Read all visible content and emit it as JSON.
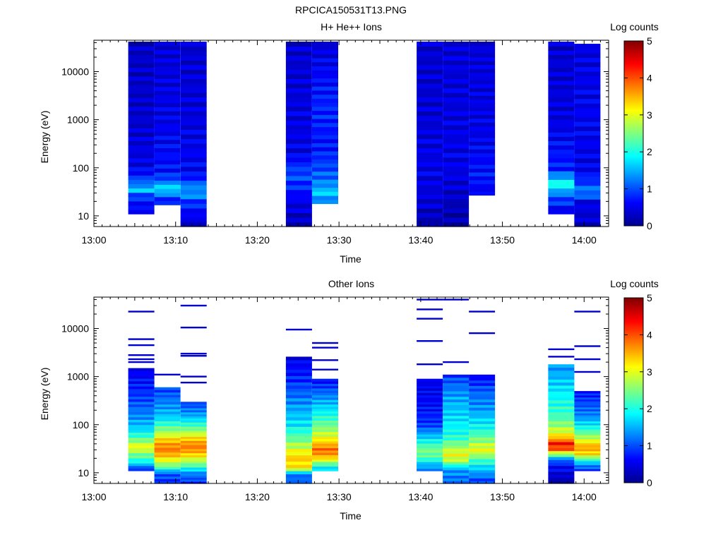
{
  "figure_title": "RPCICA150531T13.PNG",
  "colormap": {
    "stops": [
      "#00008f",
      "#0000ff",
      "#007fff",
      "#00ffff",
      "#7fff7f",
      "#ffff00",
      "#ff7f00",
      "#ff0000",
      "#7f0000"
    ],
    "min": 0,
    "max": 5
  },
  "chart_data": [
    {
      "type": "heatmap",
      "title": "H+ He++ Ions",
      "xlabel": "Time",
      "ylabel": "Energy (eV)",
      "yscale": "log",
      "ylim": [
        6,
        45000
      ],
      "xlim": [
        "13:00",
        "14:03"
      ],
      "x_ticks": [
        "13:00",
        "13:10",
        "13:20",
        "13:30",
        "13:40",
        "13:50",
        "14:00"
      ],
      "y_ticks": [
        "10",
        "100",
        "1000",
        "10000"
      ],
      "colorbar_label": "Log counts",
      "colorbar_ticks": [
        "0",
        "1",
        "2",
        "3",
        "4",
        "5"
      ],
      "columns": [
        {
          "start": "13:04.2",
          "end": "13:07.4",
          "e_min": 11,
          "e_max": 42000,
          "profile": [
            [
              11,
              0.5
            ],
            [
              25,
              0.8
            ],
            [
              35,
              1.6
            ],
            [
              45,
              1.3
            ],
            [
              60,
              0.9
            ],
            [
              100,
              0.5
            ],
            [
              1000,
              0.35
            ],
            [
              42000,
              0.3
            ]
          ]
        },
        {
          "start": "13:07.4",
          "end": "13:10.6",
          "e_min": 17,
          "e_max": 42000,
          "profile": [
            [
              17,
              0.5
            ],
            [
              28,
              1.2
            ],
            [
              38,
              1.9
            ],
            [
              50,
              1.2
            ],
            [
              80,
              0.7
            ],
            [
              1000,
              0.5
            ],
            [
              42000,
              0.4
            ]
          ]
        },
        {
          "start": "13:10.6",
          "end": "13:13.8",
          "e_min": 6,
          "e_max": 42000,
          "profile": [
            [
              6,
              0.3
            ],
            [
              18,
              0.8
            ],
            [
              30,
              1.4
            ],
            [
              45,
              1.2
            ],
            [
              70,
              0.6
            ],
            [
              1000,
              0.45
            ],
            [
              42000,
              0.35
            ]
          ]
        },
        {
          "start": "13:23.5",
          "end": "13:26.7",
          "e_min": 6,
          "e_max": 42000,
          "profile": [
            [
              6,
              0.2
            ],
            [
              20,
              0.5
            ],
            [
              50,
              0.9
            ],
            [
              80,
              1.0
            ],
            [
              200,
              0.5
            ],
            [
              42000,
              0.35
            ]
          ]
        },
        {
          "start": "13:26.7",
          "end": "13:29.9",
          "e_min": 18,
          "e_max": 42000,
          "profile": [
            [
              18,
              1.0
            ],
            [
              30,
              1.7
            ],
            [
              45,
              1.3
            ],
            [
              90,
              1.0
            ],
            [
              300,
              0.7
            ],
            [
              2000,
              0.8
            ],
            [
              42000,
              0.4
            ]
          ]
        },
        {
          "start": "13:39.5",
          "end": "13:42.7",
          "e_min": 6,
          "e_max": 42000,
          "profile": [
            [
              6,
              0.15
            ],
            [
              20,
              0.4
            ],
            [
              100,
              0.5
            ],
            [
              1000,
              0.4
            ],
            [
              42000,
              0.35
            ]
          ]
        },
        {
          "start": "13:42.7",
          "end": "13:45.9",
          "e_min": 6,
          "e_max": 42000,
          "profile": [
            [
              6,
              0.1
            ],
            [
              25,
              0.3
            ],
            [
              100,
              0.5
            ],
            [
              1000,
              0.45
            ],
            [
              42000,
              0.4
            ]
          ]
        },
        {
          "start": "13:45.9",
          "end": "13:49.1",
          "e_min": 27,
          "e_max": 42000,
          "profile": [
            [
              27,
              0.5
            ],
            [
              60,
              0.7
            ],
            [
              500,
              0.5
            ],
            [
              42000,
              0.4
            ]
          ]
        },
        {
          "start": "13:55.6",
          "end": "13:58.8",
          "e_min": 11,
          "e_max": 42000,
          "profile": [
            [
              11,
              0.4
            ],
            [
              30,
              1.2
            ],
            [
              45,
              2.1
            ],
            [
              60,
              1.6
            ],
            [
              90,
              0.8
            ],
            [
              1000,
              0.45
            ],
            [
              42000,
              0.35
            ]
          ]
        },
        {
          "start": "13:58.8",
          "end": "14:02.0",
          "e_min": 6,
          "e_max": 38000,
          "profile": [
            [
              6,
              0.3
            ],
            [
              20,
              0.5
            ],
            [
              30,
              1.3
            ],
            [
              50,
              0.9
            ],
            [
              100,
              0.5
            ],
            [
              1000,
              0.55
            ],
            [
              38000,
              0.45
            ]
          ]
        }
      ]
    },
    {
      "type": "heatmap",
      "title": "Other Ions",
      "xlabel": "Time",
      "ylabel": "Energy (eV)",
      "yscale": "log",
      "ylim": [
        6,
        45000
      ],
      "xlim": [
        "13:00",
        "14:03"
      ],
      "x_ticks": [
        "13:00",
        "13:10",
        "13:20",
        "13:30",
        "13:40",
        "13:50",
        "14:00"
      ],
      "y_ticks": [
        "10",
        "100",
        "1000",
        "10000"
      ],
      "colorbar_label": "Log counts",
      "colorbar_ticks": [
        "0",
        "1",
        "2",
        "3",
        "4",
        "5"
      ],
      "columns": [
        {
          "start": "13:04.2",
          "end": "13:07.4",
          "e_min": 11,
          "e_max": 1500,
          "profile": [
            [
              11,
              0.5
            ],
            [
              16,
              1.8
            ],
            [
              25,
              2.5
            ],
            [
              35,
              3.1
            ],
            [
              50,
              2.4
            ],
            [
              80,
              1.7
            ],
            [
              150,
              1.3
            ],
            [
              400,
              0.9
            ],
            [
              1500,
              0.5
            ]
          ],
          "lines": [
            2300,
            6000,
            4500,
            2800,
            2000,
            22500
          ]
        },
        {
          "start": "13:07.4",
          "end": "13:10.6",
          "e_min": 6,
          "e_max": 600,
          "profile": [
            [
              6,
              0.8
            ],
            [
              10,
              1.1
            ],
            [
              13,
              2.3
            ],
            [
              20,
              3.2
            ],
            [
              30,
              3.8
            ],
            [
              45,
              3.5
            ],
            [
              70,
              2.7
            ],
            [
              150,
              1.6
            ],
            [
              600,
              0.9
            ]
          ],
          "lines": [
            1100
          ]
        },
        {
          "start": "13:10.6",
          "end": "13:13.8",
          "e_min": 6,
          "e_max": 300,
          "profile": [
            [
              6,
              0.8
            ],
            [
              10,
              1.3
            ],
            [
              15,
              2.4
            ],
            [
              25,
              3.4
            ],
            [
              35,
              3.8
            ],
            [
              50,
              3.4
            ],
            [
              80,
              2.5
            ],
            [
              150,
              1.5
            ],
            [
              300,
              0.9
            ]
          ],
          "lines": [
            750,
            1000,
            2700,
            3000,
            10500,
            30000
          ]
        },
        {
          "start": "13:23.5",
          "end": "13:26.7",
          "e_min": 6,
          "e_max": 2600,
          "profile": [
            [
              6,
              1.0
            ],
            [
              10,
              1.3
            ],
            [
              12,
              3.1
            ],
            [
              20,
              3.4
            ],
            [
              30,
              3.0
            ],
            [
              50,
              2.4
            ],
            [
              100,
              1.8
            ],
            [
              300,
              1.3
            ],
            [
              900,
              0.8
            ],
            [
              2600,
              0.5
            ]
          ],
          "lines": [
            9500
          ]
        },
        {
          "start": "13:26.7",
          "end": "13:29.9",
          "e_min": 11,
          "e_max": 900,
          "profile": [
            [
              11,
              1.5
            ],
            [
              15,
              2.2
            ],
            [
              20,
              3.3
            ],
            [
              30,
              3.9
            ],
            [
              45,
              3.3
            ],
            [
              80,
              2.6
            ],
            [
              200,
              1.8
            ],
            [
              500,
              1.1
            ],
            [
              900,
              0.6
            ]
          ],
          "lines": [
            1400,
            2200,
            4000,
            5000
          ]
        },
        {
          "start": "13:39.5",
          "end": "13:42.7",
          "e_min": 11,
          "e_max": 900,
          "profile": [
            [
              11,
              1.3
            ],
            [
              15,
              1.5
            ],
            [
              20,
              2.2
            ],
            [
              30,
              2.5
            ],
            [
              50,
              1.8
            ],
            [
              100,
              0.9
            ],
            [
              300,
              0.6
            ],
            [
              900,
              0.5
            ]
          ],
          "lines": [
            1800,
            5500,
            16000,
            25000,
            40000
          ]
        },
        {
          "start": "13:42.7",
          "end": "13:45.9",
          "e_min": 6,
          "e_max": 1100,
          "profile": [
            [
              6,
              1.1
            ],
            [
              12,
              1.4
            ],
            [
              18,
              2.8
            ],
            [
              25,
              3.1
            ],
            [
              35,
              2.6
            ],
            [
              60,
              2.0
            ],
            [
              150,
              1.7
            ],
            [
              400,
              1.4
            ],
            [
              1100,
              0.9
            ]
          ],
          "lines": [
            2000,
            40000
          ]
        },
        {
          "start": "13:45.9",
          "end": "13:49.1",
          "e_min": 6,
          "e_max": 1100,
          "profile": [
            [
              6,
              0.8
            ],
            [
              12,
              1.6
            ],
            [
              20,
              2.3
            ],
            [
              30,
              3.1
            ],
            [
              45,
              2.6
            ],
            [
              80,
              2.0
            ],
            [
              200,
              1.4
            ],
            [
              500,
              1.1
            ],
            [
              1100,
              0.6
            ]
          ],
          "lines": [
            8000,
            22500
          ]
        },
        {
          "start": "13:55.6",
          "end": "13:58.8",
          "e_min": 6,
          "e_max": 1800,
          "profile": [
            [
              6,
              0.1
            ],
            [
              15,
              0.7
            ],
            [
              20,
              1.4
            ],
            [
              30,
              3.8
            ],
            [
              40,
              4.4
            ],
            [
              55,
              3.4
            ],
            [
              80,
              2.8
            ],
            [
              150,
              2.2
            ],
            [
              500,
              1.8
            ],
            [
              1800,
              1.3
            ]
          ],
          "lines": [
            2600,
            3700
          ]
        },
        {
          "start": "13:58.8",
          "end": "14:02.0",
          "e_min": 11,
          "e_max": 500,
          "profile": [
            [
              11,
              0.8
            ],
            [
              16,
              1.5
            ],
            [
              25,
              3.3
            ],
            [
              35,
              3.6
            ],
            [
              50,
              2.9
            ],
            [
              80,
              2.1
            ],
            [
              150,
              1.3
            ],
            [
              500,
              0.7
            ]
          ],
          "lines": [
            1250,
            2300,
            4300,
            22500
          ]
        }
      ]
    }
  ]
}
